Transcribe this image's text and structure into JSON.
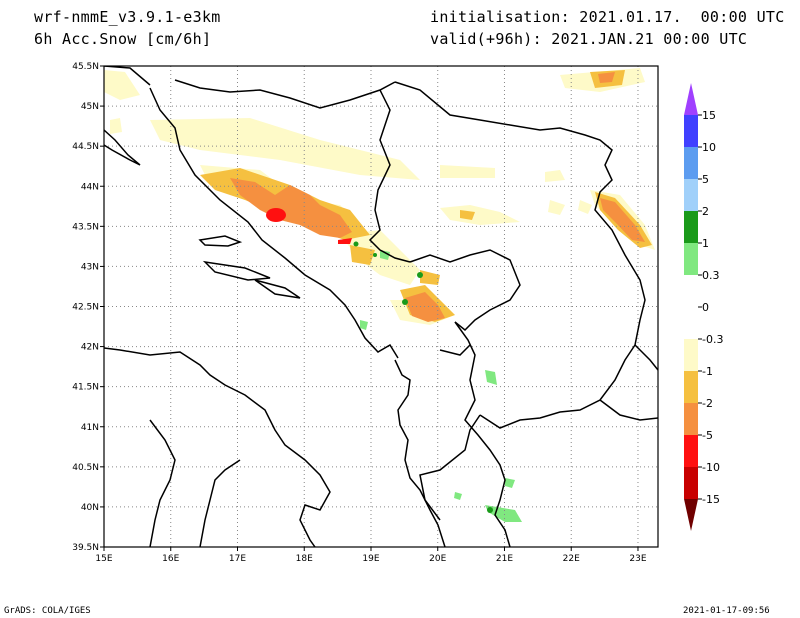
{
  "header": {
    "model": "wrf-nmmE_v3.9.1-e3km",
    "field": "6h Acc.Snow [cm/6h]",
    "initialisation": "initialisation: 2021.01.17.  00:00 UTC",
    "valid": "valid(+96h): 2021.JAN.21 00:00 UTC"
  },
  "map": {
    "lon_labels": [
      "15E",
      "16E",
      "17E",
      "18E",
      "19E",
      "20E",
      "21E",
      "22E",
      "23E"
    ],
    "lat_labels": [
      "45.5N",
      "45N",
      "44.5N",
      "44N",
      "43.5N",
      "43N",
      "42.5N",
      "42N",
      "41.5N",
      "41N",
      "40.5N",
      "40N",
      "39.5N"
    ],
    "lon_range": [
      15,
      23.3
    ],
    "lat_range": [
      39.5,
      45.5
    ],
    "grid": "dotted"
  },
  "colorbar": {
    "labels": [
      "15",
      "10",
      "5",
      "2",
      "1",
      "0.3",
      "0",
      "-0.3",
      "-1",
      "-2",
      "-5",
      "-10",
      "-15"
    ],
    "colors": [
      "#4040ff",
      "#5c9cf0",
      "#a0d0fa",
      "#1a9a1a",
      "#80e880",
      "#ffffff",
      "#ffffff",
      "#fefac8",
      "#f5c040",
      "#f59040",
      "#ff1010",
      "#c80000",
      "#8a0000"
    ],
    "top_color": "#a040ff",
    "bottom_color": "#700000"
  },
  "footer": {
    "left": "GrADS: COLA/IGES",
    "right": "2021-01-17-09:56"
  }
}
